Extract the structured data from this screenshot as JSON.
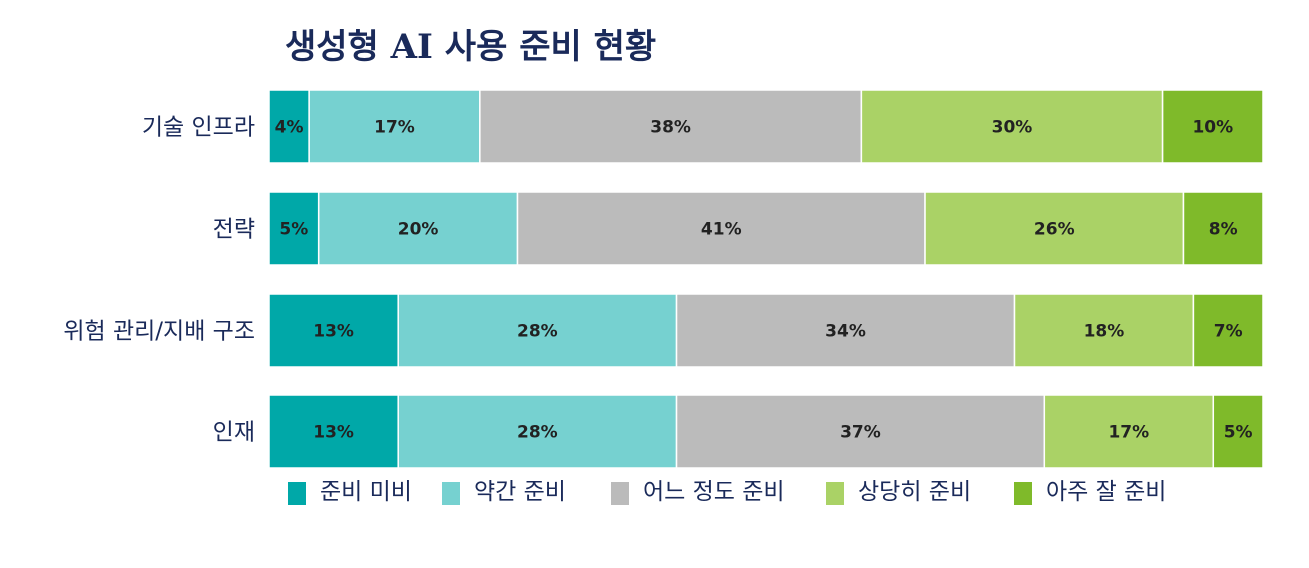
{
  "chart_data": {
    "type": "bar",
    "orientation": "horizontal",
    "stacked": true,
    "title": "생성형 AI 사용 준비 현황",
    "categories": [
      "기술 인프라",
      "전략",
      "위험 관리/지배 구조",
      "인재"
    ],
    "series": [
      {
        "name": "준비 미비",
        "color": "#00a8a8",
        "values": [
          4,
          5,
          13,
          13
        ]
      },
      {
        "name": "약간 준비",
        "color": "#76d1d0",
        "values": [
          17,
          20,
          28,
          28
        ]
      },
      {
        "name": "어느 정도 준비",
        "color": "#bbbbbb",
        "values": [
          38,
          41,
          34,
          37
        ]
      },
      {
        "name": "상당히 준비",
        "color": "#aad266",
        "values": [
          30,
          26,
          18,
          17
        ]
      },
      {
        "name": "아주 잘 준비",
        "color": "#7fba2a",
        "values": [
          10,
          8,
          7,
          5
        ]
      }
    ],
    "value_suffix": "%",
    "legend_position": "bottom",
    "grid": false
  }
}
